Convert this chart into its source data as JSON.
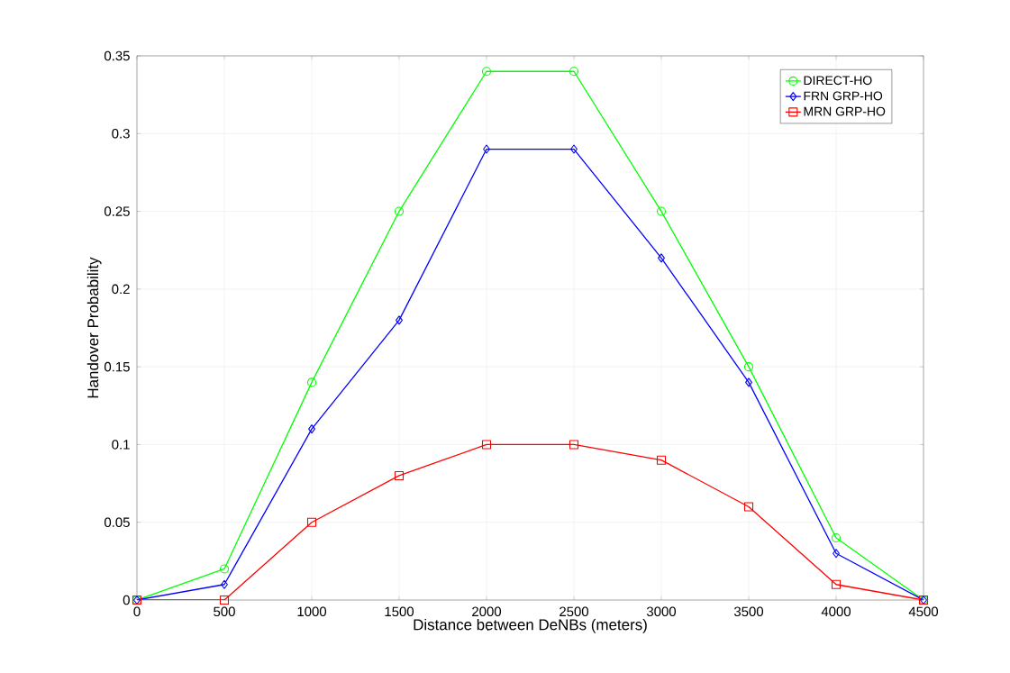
{
  "chart_data": {
    "type": "line",
    "xlabel": "Distance between DeNBs (meters)",
    "ylabel": "Handover Probability",
    "x": [
      0,
      500,
      1000,
      1500,
      2000,
      2500,
      3000,
      3500,
      4000,
      4500
    ],
    "series": [
      {
        "name": "DIRECT-HO",
        "color": "#00ff00",
        "marker": "circle",
        "values": [
          0,
          0.02,
          0.14,
          0.25,
          0.34,
          0.34,
          0.25,
          0.15,
          0.04,
          0
        ]
      },
      {
        "name": "FRN GRP-HO",
        "color": "#0000ff",
        "marker": "diamond",
        "values": [
          0,
          0.01,
          0.11,
          0.18,
          0.29,
          0.29,
          0.22,
          0.14,
          0.03,
          0
        ]
      },
      {
        "name": "MRN GRP-HO",
        "color": "#ff0000",
        "marker": "square",
        "values": [
          0,
          0,
          0.05,
          0.08,
          0.1,
          0.1,
          0.09,
          0.06,
          0.01,
          0
        ]
      }
    ],
    "xlim": [
      0,
      4500
    ],
    "ylim": [
      0,
      0.35
    ],
    "xticks": [
      0,
      500,
      1000,
      1500,
      2000,
      2500,
      3000,
      3500,
      4000,
      4500
    ],
    "yticks": [
      0,
      0.05,
      0.1,
      0.15,
      0.2,
      0.25,
      0.3,
      0.35
    ],
    "grid": true,
    "legend": "top right",
    "line_style": "solid"
  }
}
